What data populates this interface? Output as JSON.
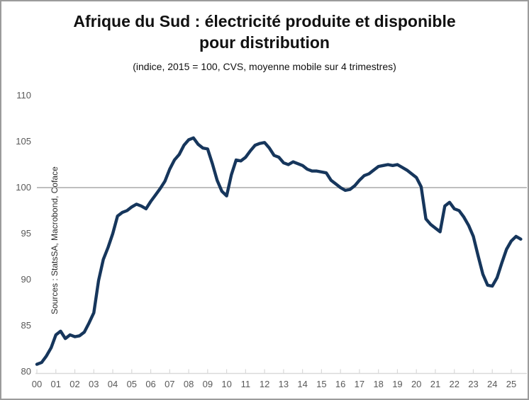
{
  "colors": {
    "line": "#16365c",
    "reference_line": "#a8a8a8",
    "axis": "#d9d9d9",
    "tick_label": "#595959"
  },
  "chart_data": {
    "type": "line",
    "title": "Afrique du Sud : électricité produite et disponible pour distribution",
    "subtitle": "(indice, 2015 = 100, CVS, moyenne mobile sur 4 trimestres)",
    "source_note": "Sources : StatsSA, Macrobond, Coface",
    "series_name": "Électricité produite et disponible pour distribution (indice, 2015 = 100)",
    "frequency": "quarterly",
    "legend": "none",
    "grid": "off",
    "reference_line_y": 100,
    "ylim": [
      80,
      110
    ],
    "xlim": [
      2000,
      2025.75
    ],
    "yticks": [
      110,
      105,
      100,
      95,
      90,
      85,
      80
    ],
    "xtick_years": [
      2000,
      2001,
      2002,
      2003,
      2004,
      2005,
      2006,
      2007,
      2008,
      2009,
      2010,
      2011,
      2012,
      2013,
      2014,
      2015,
      2016,
      2017,
      2018,
      2019,
      2020,
      2021,
      2022,
      2023,
      2024,
      2025
    ],
    "xtick_labels": [
      "00",
      "01",
      "02",
      "03",
      "04",
      "05",
      "06",
      "07",
      "08",
      "09",
      "10",
      "11",
      "12",
      "13",
      "14",
      "15",
      "16",
      "17",
      "18",
      "19",
      "20",
      "21",
      "22",
      "23",
      "24",
      "25"
    ],
    "x": [
      2000,
      2000.25,
      2000.5,
      2000.75,
      2001,
      2001.25,
      2001.5,
      2001.75,
      2002,
      2002.25,
      2002.5,
      2002.75,
      2003,
      2003.25,
      2003.5,
      2003.75,
      2004,
      2004.25,
      2004.5,
      2004.75,
      2005,
      2005.25,
      2005.5,
      2005.75,
      2006,
      2006.25,
      2006.5,
      2006.75,
      2007,
      2007.25,
      2007.5,
      2007.75,
      2008,
      2008.25,
      2008.5,
      2008.75,
      2009,
      2009.25,
      2009.5,
      2009.75,
      2010,
      2010.25,
      2010.5,
      2010.75,
      2011,
      2011.25,
      2011.5,
      2011.75,
      2012,
      2012.25,
      2012.5,
      2012.75,
      2013,
      2013.25,
      2013.5,
      2013.75,
      2014,
      2014.25,
      2014.5,
      2014.75,
      2015,
      2015.25,
      2015.5,
      2015.75,
      2016,
      2016.25,
      2016.5,
      2016.75,
      2017,
      2017.25,
      2017.5,
      2017.75,
      2018,
      2018.25,
      2018.5,
      2018.75,
      2019,
      2019.25,
      2019.5,
      2019.75,
      2020,
      2020.25,
      2020.5,
      2020.75,
      2021,
      2021.25,
      2021.5,
      2021.75,
      2022,
      2022.25,
      2022.5,
      2022.75,
      2023,
      2023.25,
      2023.5,
      2023.75,
      2024,
      2024.25,
      2024.5,
      2024.75,
      2025,
      2025.25,
      2025.5
    ],
    "values": [
      80.8,
      81.0,
      81.7,
      82.6,
      84.0,
      84.4,
      83.6,
      84.0,
      83.8,
      83.9,
      84.3,
      85.3,
      86.4,
      89.9,
      92.2,
      93.5,
      95.0,
      96.9,
      97.3,
      97.5,
      97.9,
      98.2,
      98.0,
      97.7,
      98.5,
      99.2,
      99.9,
      100.7,
      102.0,
      103.0,
      103.6,
      104.6,
      105.2,
      105.4,
      104.7,
      104.3,
      104.2,
      102.6,
      100.8,
      99.6,
      99.1,
      101.4,
      103.0,
      102.9,
      103.3,
      104.0,
      104.6,
      104.8,
      104.9,
      104.3,
      103.5,
      103.3,
      102.7,
      102.5,
      102.8,
      102.6,
      102.4,
      102.0,
      101.8,
      101.8,
      101.7,
      101.6,
      100.8,
      100.4,
      100.0,
      99.7,
      99.8,
      100.2,
      100.8,
      101.3,
      101.5,
      101.9,
      102.3,
      102.4,
      102.5,
      102.4,
      102.5,
      102.2,
      101.9,
      101.5,
      101.1,
      100.1,
      96.6,
      96.0,
      95.6,
      95.2,
      98.0,
      98.4,
      97.7,
      97.5,
      96.8,
      95.9,
      94.7,
      92.6,
      90.6,
      89.4,
      89.3,
      90.2,
      91.8,
      93.3,
      94.2,
      94.7,
      94.4
    ]
  }
}
